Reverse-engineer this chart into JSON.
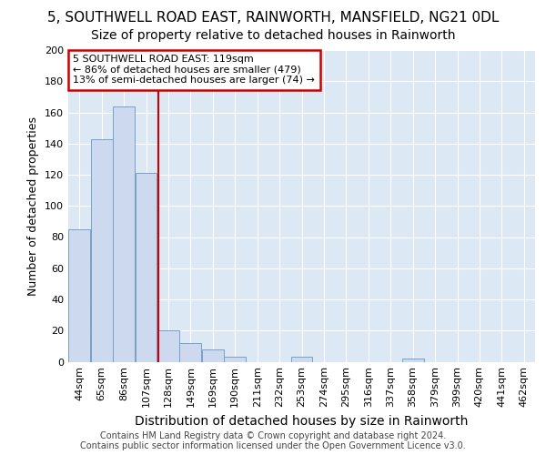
{
  "title_line1": "5, SOUTHWELL ROAD EAST, RAINWORTH, MANSFIELD, NG21 0DL",
  "title_line2": "Size of property relative to detached houses in Rainworth",
  "xlabel": "Distribution of detached houses by size in Rainworth",
  "ylabel": "Number of detached properties",
  "footer_line1": "Contains HM Land Registry data © Crown copyright and database right 2024.",
  "footer_line2": "Contains public sector information licensed under the Open Government Licence v3.0.",
  "categories": [
    "44sqm",
    "65sqm",
    "86sqm",
    "107sqm",
    "128sqm",
    "149sqm",
    "169sqm",
    "190sqm",
    "211sqm",
    "232sqm",
    "253sqm",
    "274sqm",
    "295sqm",
    "316sqm",
    "337sqm",
    "358sqm",
    "379sqm",
    "399sqm",
    "420sqm",
    "441sqm",
    "462sqm"
  ],
  "values": [
    85,
    143,
    164,
    121,
    20,
    12,
    8,
    3,
    0,
    0,
    3,
    0,
    0,
    0,
    0,
    2,
    0,
    0,
    0,
    0,
    0
  ],
  "bar_color": "#ccd9ee",
  "bar_edge_color": "#7a9fc8",
  "annotation_text_line1": "5 SOUTHWELL ROAD EAST: 119sqm",
  "annotation_text_line2": "← 86% of detached houses are smaller (479)",
  "annotation_text_line3": "13% of semi-detached houses are larger (74) →",
  "annotation_box_facecolor": "#ffffff",
  "annotation_box_edgecolor": "#cc0000",
  "vline_color": "#cc0000",
  "vline_x_index": 3.57,
  "ylim": [
    0,
    200
  ],
  "yticks": [
    0,
    20,
    40,
    60,
    80,
    100,
    120,
    140,
    160,
    180,
    200
  ],
  "background_color": "#dde8f5",
  "grid_color": "#ffffff",
  "fig_bg": "#ffffff",
  "title1_fontsize": 11,
  "title2_fontsize": 10,
  "ylabel_fontsize": 9,
  "xlabel_fontsize": 10,
  "tick_fontsize": 8,
  "footer_fontsize": 7,
  "annot_fontsize": 8
}
